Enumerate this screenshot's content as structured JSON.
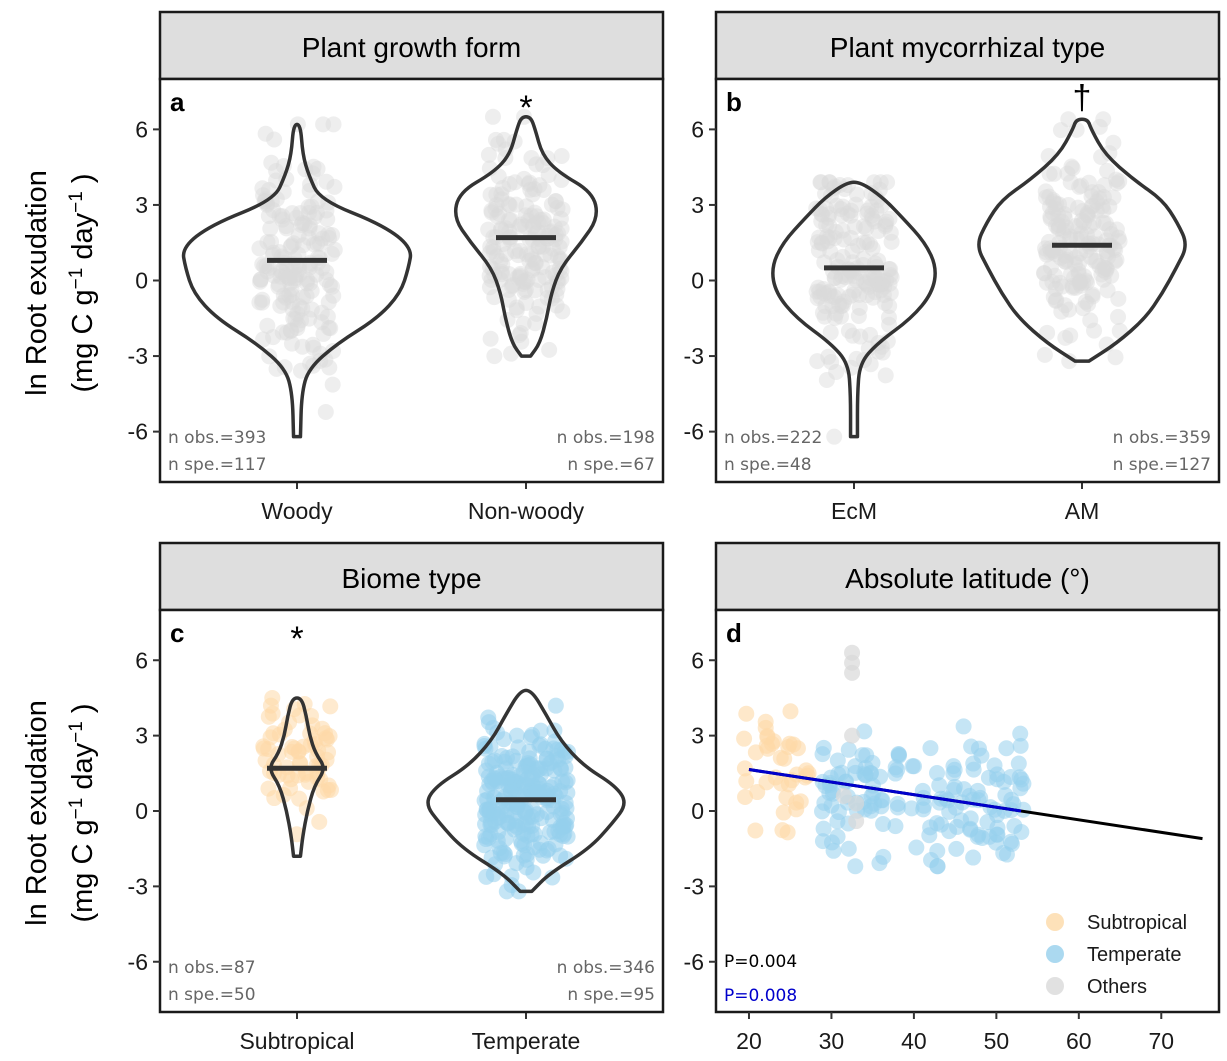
{
  "y_axis": {
    "label_line1": "ln Root exudation",
    "label_line2_prefix": "(mg C g",
    "label_sup1": "−1",
    "label_mid": " day",
    "label_sup2": "−1",
    "label_suffix": " )"
  },
  "colors": {
    "grey_points": "#d9d9d9",
    "subtropical": "#fdd9a7",
    "temperate": "#96d0ec",
    "others": "#d9d9d9",
    "violin": "#333333",
    "median": "#333333",
    "strip_bg": "#dedede",
    "fit_black": "#000000",
    "fit_blue": "#0000cc",
    "p_blue": "#0000cc"
  },
  "chart_data": [
    {
      "type": "violin",
      "panel": "a",
      "strip": "Plant growth form",
      "ylim": [
        -8,
        8
      ],
      "yticks": [
        -6,
        -3,
        0,
        3,
        6
      ],
      "categories": [
        "Woody",
        "Non-woody"
      ],
      "groups": [
        {
          "name": "Woody",
          "median": 0.8,
          "min": -6.2,
          "max": 6.2,
          "n_obs": "n obs.=393",
          "n_spe": "n spe.=117",
          "sig": ""
        },
        {
          "name": "Non-woody",
          "median": 1.7,
          "min": -3.0,
          "max": 6.5,
          "n_obs": "n obs.=198",
          "n_spe": "n spe.=67",
          "sig": "*"
        }
      ]
    },
    {
      "type": "violin",
      "panel": "b",
      "strip": "Plant mycorrhizal type",
      "ylim": [
        -8,
        8
      ],
      "yticks": [
        -6,
        -3,
        0,
        3,
        6
      ],
      "categories": [
        "EcM",
        "AM"
      ],
      "groups": [
        {
          "name": "EcM",
          "median": 0.5,
          "min": -6.2,
          "max": 3.9,
          "n_obs": "n obs.=222",
          "n_spe": "n spe.=48",
          "sig": ""
        },
        {
          "name": "AM",
          "median": 1.4,
          "min": -3.2,
          "max": 6.4,
          "n_obs": "n obs.=359",
          "n_spe": "n spe.=127",
          "sig": "†"
        }
      ]
    },
    {
      "type": "violin",
      "panel": "c",
      "strip": "Biome type",
      "ylim": [
        -8,
        8
      ],
      "yticks": [
        -6,
        -3,
        0,
        3,
        6
      ],
      "categories": [
        "Subtropical",
        "Temperate"
      ],
      "groups": [
        {
          "name": "Subtropical",
          "median": 1.7,
          "min": -1.8,
          "max": 4.5,
          "n_obs": "n obs.=87",
          "n_spe": "n spe.=50",
          "sig": "*"
        },
        {
          "name": "Temperate",
          "median": 0.45,
          "min": -3.2,
          "max": 4.8,
          "n_obs": "n obs.=346",
          "n_spe": "n spe.=95",
          "sig": ""
        }
      ]
    },
    {
      "type": "scatter",
      "panel": "d",
      "strip": "Absolute latitude (°)",
      "xlim": [
        16,
        77
      ],
      "ylim": [
        -8,
        8
      ],
      "xticks": [
        20,
        30,
        40,
        50,
        60,
        70
      ],
      "yticks": [
        -6,
        -3,
        0,
        3,
        6
      ],
      "fits": [
        {
          "name": "all",
          "x": [
            20,
            75
          ],
          "y": [
            1.65,
            -1.1
          ],
          "p": "P=0.004"
        },
        {
          "name": "temperate",
          "x": [
            20,
            53
          ],
          "y": [
            1.65,
            0.0
          ],
          "p": "P=0.008"
        }
      ],
      "legend": {
        "position": "bottom-right",
        "entries": [
          "Subtropical",
          "Temperate",
          "Others"
        ]
      }
    }
  ]
}
